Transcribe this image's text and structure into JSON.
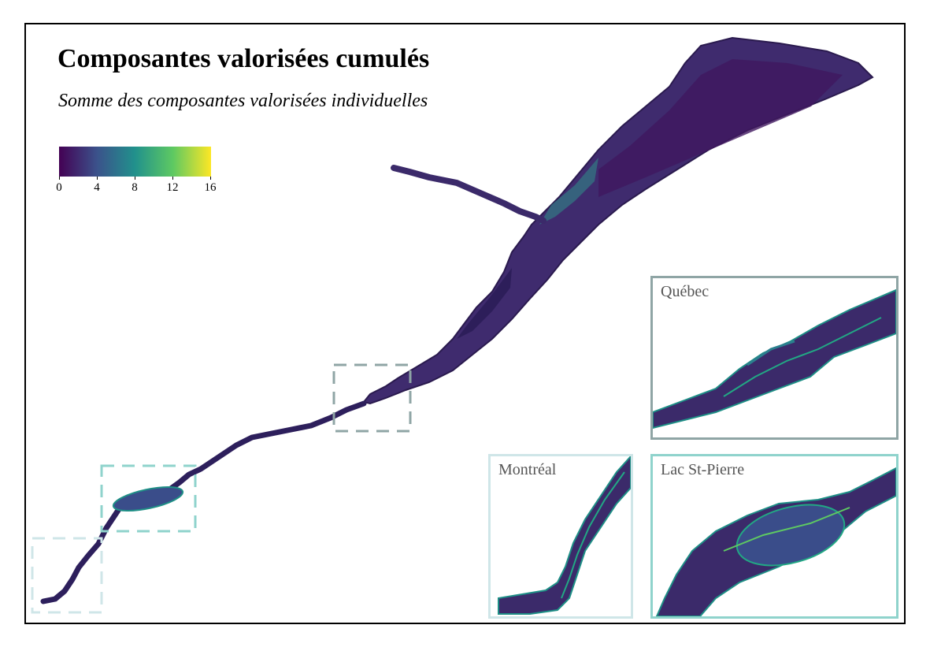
{
  "map": {
    "title": "Composantes valorisées cumulés",
    "subtitle": "Somme des composantes valorisées individuelles"
  },
  "legend": {
    "min": 0,
    "max": 16,
    "ticks": [
      "0",
      "4",
      "8",
      "12",
      "16"
    ],
    "palette": [
      "#440154",
      "#3b528b",
      "#21918c",
      "#5ec962",
      "#fde725"
    ]
  },
  "insets": {
    "quebec": {
      "label": "Québec",
      "color": "#8fa5a5"
    },
    "montreal": {
      "label": "Montréal",
      "color": "#cfe6e8"
    },
    "lac": {
      "label": "Lac St-Pierre",
      "color": "#8fd3cc"
    }
  }
}
